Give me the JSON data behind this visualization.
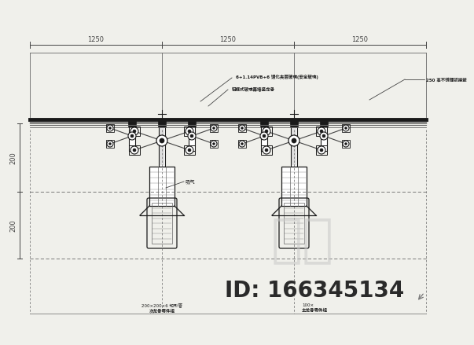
{
  "bg_color": "#f0f0eb",
  "line_color": "#666666",
  "dark_color": "#1a1a1a",
  "med_color": "#444444",
  "title_text": "知末",
  "id_text": "ID: 166345134",
  "ann1": "6+1.14PVB+6 馒化夹层玻璃(安全玻璃)",
  "ann2": "铝框式玻璃幕墙竖龙骨",
  "ann3": "250 高不锈锂驳接爺",
  "ann4": "200×200×6 矩形管",
  "ann5": "次龙骨零件组",
  "ann6": "100×",
  "ann7": "主龙骨零件组",
  "ann8": "吸气",
  "watermark_color": "#c8c8c8",
  "watermark_fontsize": 48,
  "id_fontsize": 20
}
